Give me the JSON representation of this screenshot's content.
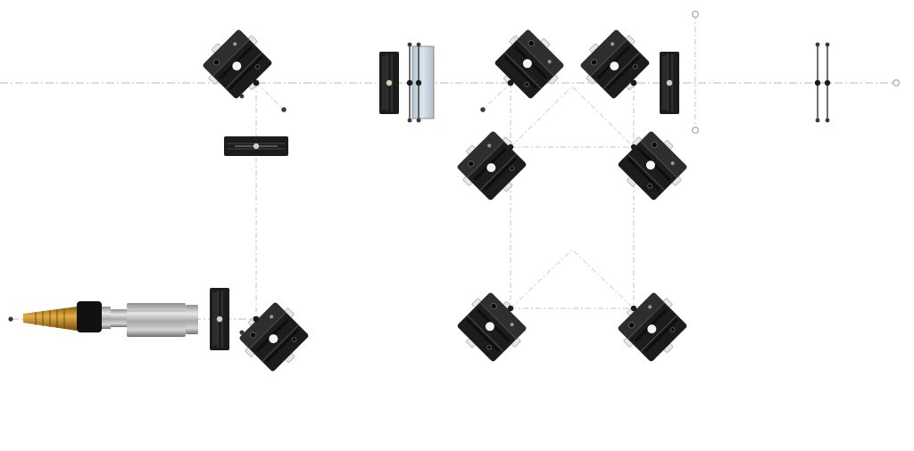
{
  "diagram": {
    "type": "optical-layout",
    "background": "#ffffff",
    "colors": {
      "mount": "#1c1c1c",
      "mount_edge": "#555555",
      "beam": "#b9b9b9",
      "node": "#1a1a1a",
      "glass": "#cfdce6",
      "laser_metal": "#bdbdbd",
      "fiber_tip": "#c9962a"
    },
    "components": [
      "fiber-coupled-laser",
      "fiber-tip",
      "lens-mount",
      "kinematic-mirror-mount",
      "lens-mount-horizontal",
      "window-plate",
      "kinematic-mirror-mount",
      "kinematic-mirror-mount",
      "lens-mount",
      "iris",
      "polarizer-pair",
      "kinematic-mirror-mount",
      "kinematic-mirror-mount",
      "kinematic-mirror-mount",
      "kinematic-mirror-mount"
    ]
  }
}
